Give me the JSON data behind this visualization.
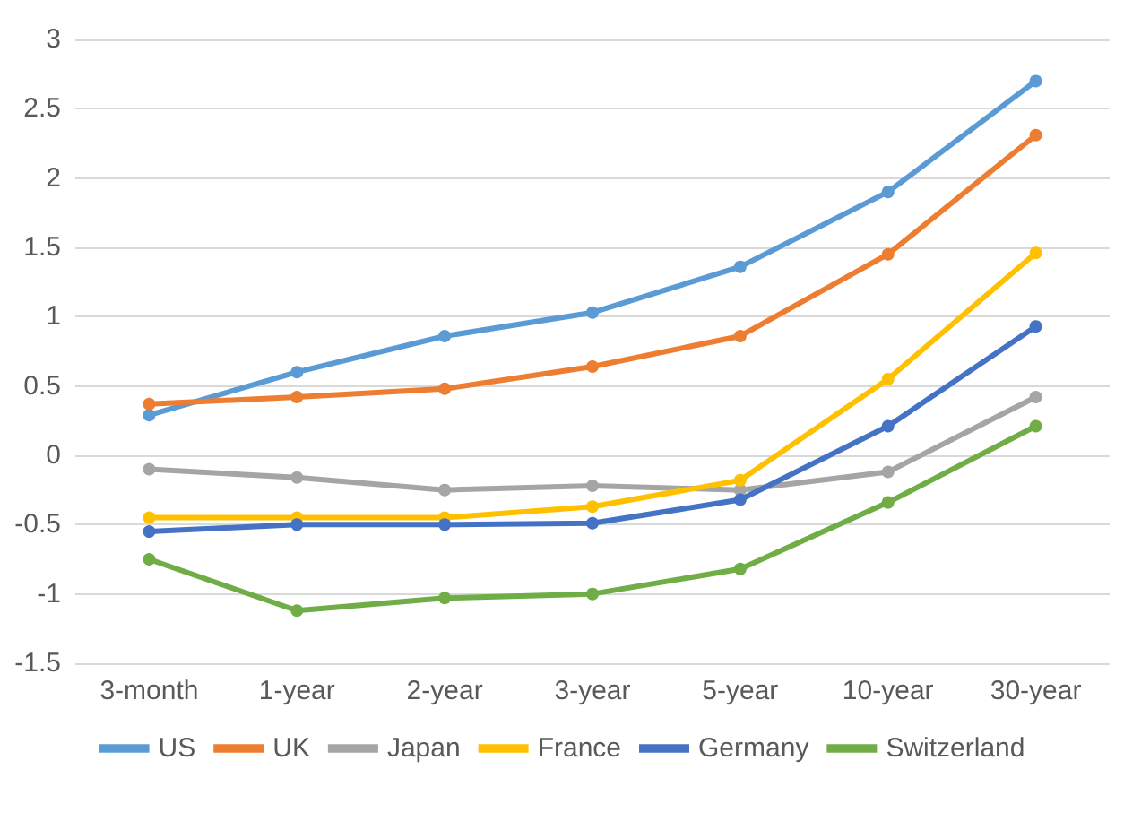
{
  "chart_data": {
    "type": "line",
    "categories": [
      "3-month",
      "1-year",
      "2-year",
      "3-year",
      "5-year",
      "10-year",
      "30-year"
    ],
    "series": [
      {
        "name": "US",
        "color": "#5b9bd5",
        "values": [
          0.29,
          0.6,
          0.86,
          1.03,
          1.36,
          1.9,
          2.7
        ]
      },
      {
        "name": "UK",
        "color": "#ed7d31",
        "values": [
          0.37,
          0.42,
          0.48,
          0.64,
          0.86,
          1.45,
          2.31
        ]
      },
      {
        "name": "Japan",
        "color": "#a5a5a5",
        "values": [
          -0.1,
          -0.16,
          -0.25,
          -0.22,
          -0.25,
          -0.12,
          0.42
        ]
      },
      {
        "name": "France",
        "color": "#ffc000",
        "values": [
          -0.45,
          -0.45,
          -0.45,
          -0.37,
          -0.18,
          0.55,
          1.46
        ]
      },
      {
        "name": "Germany",
        "color": "#4472c4",
        "values": [
          -0.55,
          -0.5,
          -0.5,
          -0.49,
          -0.32,
          0.21,
          0.93
        ]
      },
      {
        "name": "Switzerland",
        "color": "#70ad47",
        "values": [
          -0.75,
          -1.12,
          -1.03,
          -1.0,
          -0.82,
          -0.34,
          0.21
        ]
      }
    ],
    "ylim": [
      -1.5,
      3
    ],
    "yticks": [
      -1.5,
      -1,
      -0.5,
      0,
      0.5,
      1,
      1.5,
      2,
      2.5,
      3
    ],
    "grid": "y",
    "legend": "bottom",
    "marker": "circle",
    "line_style": "solid"
  }
}
